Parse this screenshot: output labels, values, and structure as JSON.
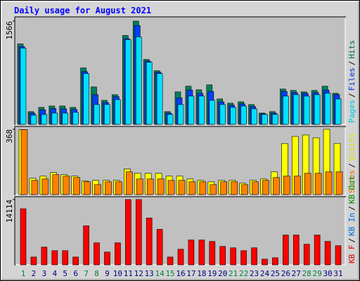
{
  "chart_data": [
    {
      "type": "bar",
      "title": "Daily usage for August 2021",
      "ylim": [
        0,
        1566
      ],
      "yticks": [
        1566
      ],
      "legend_separator": "/",
      "series": [
        {
          "name": "Pages",
          "color": "#00e0ff",
          "values": [
            1156,
            139,
            150,
            171,
            171,
            182,
            770,
            300,
            300,
            374,
            1284,
            1327,
            941,
            770,
            150,
            300,
            428,
            428,
            364,
            300,
            257,
            278,
            235,
            150,
            150,
            428,
            449,
            428,
            449,
            471,
            385
          ]
        },
        {
          "name": "Files",
          "color": "#0040ff",
          "values": [
            1180,
            170,
            220,
            240,
            235,
            225,
            800,
            450,
            330,
            420,
            1300,
            1500,
            960,
            790,
            170,
            400,
            520,
            470,
            500,
            340,
            290,
            310,
            270,
            160,
            170,
            500,
            480,
            470,
            480,
            520,
            450
          ]
        },
        {
          "name": "Hits",
          "color": "#00805c",
          "values": [
            1220,
            193,
            257,
            278,
            278,
            257,
            856,
            567,
            364,
            449,
            1348,
            1566,
            984,
            813,
            193,
            492,
            578,
            524,
            599,
            385,
            321,
            342,
            300,
            171,
            193,
            535,
            514,
            492,
            514,
            578,
            471
          ]
        }
      ]
    },
    {
      "type": "bar",
      "ylim": [
        0,
        368
      ],
      "yticks": [
        368
      ],
      "legend_separator": "/",
      "series": [
        {
          "name": "Sites",
          "color": "#ff8000",
          "values": [
            366,
            80,
            88,
            112,
            104,
            96,
            72,
            56,
            72,
            72,
            128,
            88,
            88,
            88,
            80,
            80,
            72,
            72,
            56,
            72,
            72,
            56,
            72,
            80,
            96,
            104,
            104,
            120,
            120,
            128,
            128
          ]
        },
        {
          "name": "Visits",
          "color": "#ffff00",
          "values": [
            366,
            92,
            104,
            124,
            112,
            104,
            76,
            80,
            80,
            80,
            144,
            120,
            120,
            120,
            104,
            104,
            88,
            80,
            72,
            80,
            80,
            64,
            80,
            88,
            128,
            288,
            328,
            336,
            320,
            368,
            288
          ]
        }
      ]
    },
    {
      "type": "bar",
      "ylim": [
        0,
        14114
      ],
      "yticks": [
        14114
      ],
      "legend_separator": "/",
      "categories": [
        "1",
        "2",
        "3",
        "4",
        "5",
        "6",
        "7",
        "8",
        "9",
        "10",
        "11",
        "12",
        "13",
        "14",
        "15",
        "16",
        "17",
        "18",
        "19",
        "20",
        "21",
        "22",
        "23",
        "24",
        "25",
        "26",
        "27",
        "28",
        "29",
        "30",
        "31"
      ],
      "highlight_categories": [
        "1",
        "7",
        "8",
        "14",
        "15",
        "21",
        "22",
        "28",
        "29"
      ],
      "category_color": "#000080",
      "highlight_color": "#008040",
      "series": [
        {
          "name": "KB F",
          "color": "#ff0000",
          "values": [
            12119,
            1687,
            3835,
            3068,
            3068,
            1687,
            8437,
            4755,
            2761,
            4755,
            14114,
            14114,
            10124,
            7670,
            1687,
            3375,
            5369,
            5369,
            5062,
            3988,
            3682,
            3068,
            3682,
            1227,
            1534,
            6443,
            6443,
            4449,
            6443,
            5062,
            4142
          ]
        },
        {
          "name": "KB In",
          "color": "#0080ff"
        },
        {
          "name": "KB Out",
          "color": "#00a000"
        }
      ]
    }
  ]
}
